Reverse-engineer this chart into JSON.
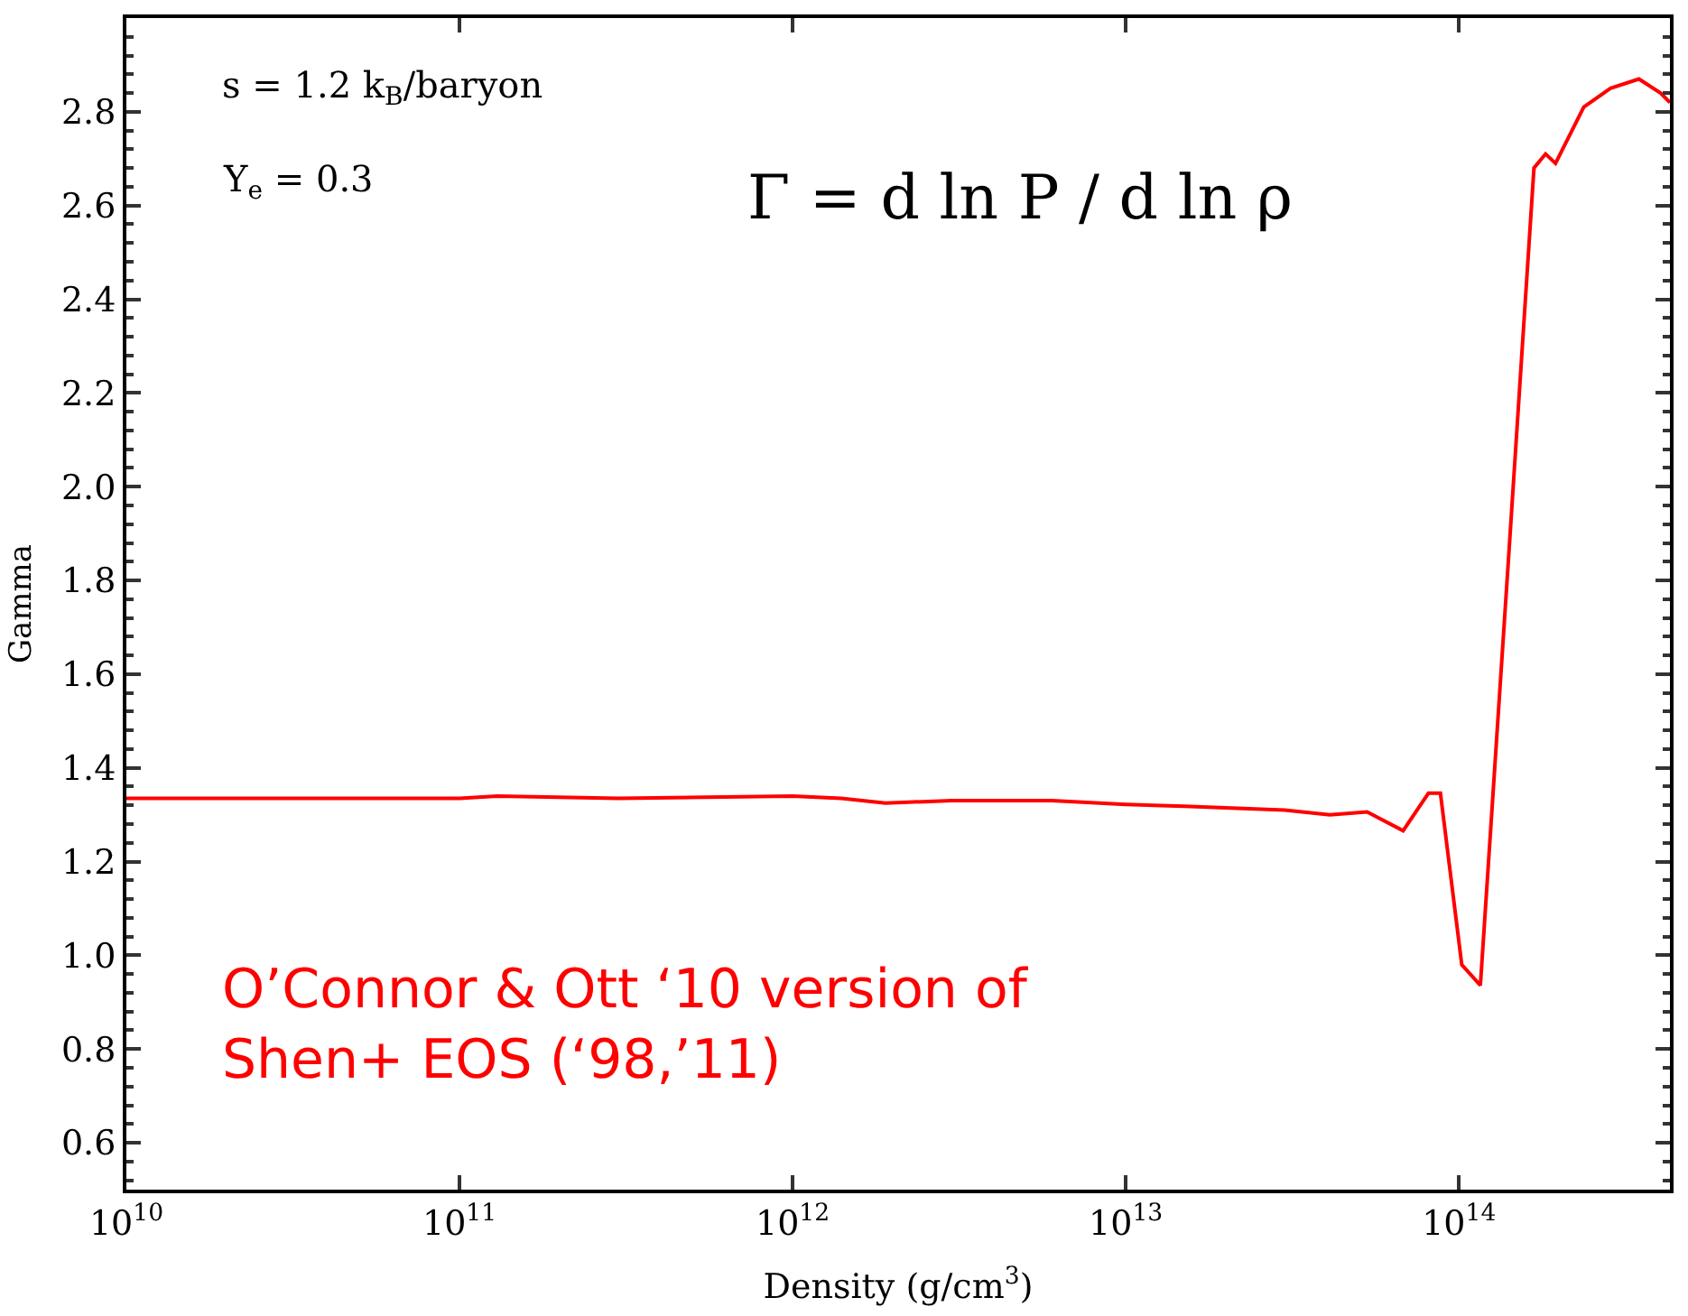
{
  "chart_data": {
    "type": "line",
    "xlabel": "Density (g/cm$^{3}$)",
    "ylabel": "Gamma",
    "log": "x",
    "xlim": [
      10000000000.0,
      430000000000000.0
    ],
    "xticks": [
      {
        "value": 10000000000.0,
        "label": "10$^{10}$"
      },
      {
        "value": 100000000000.0,
        "label": "10$^{11}$"
      },
      {
        "value": 1000000000000.0,
        "label": "10$^{12}$"
      },
      {
        "value": 10000000000000.0,
        "label": "10$^{13}$"
      },
      {
        "value": 100000000000000.0,
        "label": "10$^{14}$"
      }
    ],
    "ylim": [
      0.5,
      3.0
    ],
    "yticks": [
      {
        "value": 0.6,
        "label": "0.6"
      },
      {
        "value": 0.8,
        "label": "0.8"
      },
      {
        "value": 1.0,
        "label": "1.0"
      },
      {
        "value": 1.2,
        "label": "1.2"
      },
      {
        "value": 1.4,
        "label": "1.4"
      },
      {
        "value": 1.6,
        "label": "1.6"
      },
      {
        "value": 1.8,
        "label": "1.8"
      },
      {
        "value": 2.0,
        "label": "2.0"
      },
      {
        "value": 2.2,
        "label": "2.2"
      },
      {
        "value": 2.4,
        "label": "2.4"
      },
      {
        "value": 2.6,
        "label": "2.6"
      },
      {
        "value": 2.8,
        "label": "2.8"
      }
    ],
    "marker": "none",
    "line_style": "solid",
    "series": [
      {
        "color": "#ff0000",
        "x": [
          10000000000.0,
          30000000000.0,
          100000000000.0,
          130000000000.0,
          300000000000.0,
          1000000000000.0,
          1400000000000.0,
          1900000000000.0,
          3000000000000.0,
          6000000000000.0,
          10000000000000.0,
          15000000000000.0,
          30000000000000.0,
          41000000000000.0,
          53000000000000.0,
          68000000000000.0,
          81000000000000.0,
          88000000000000.0,
          102000000000000.0,
          116000000000000.0,
          141000000000000.0,
          168000000000000.0,
          182000000000000.0,
          195000000000000.0,
          237000000000000.0,
          285000000000000.0,
          347000000000000.0,
          403000000000000.0,
          430000000000000.0
        ],
        "values": [
          1.335,
          1.335,
          1.335,
          1.34,
          1.335,
          1.34,
          1.335,
          1.325,
          1.33,
          1.33,
          1.322,
          1.318,
          1.31,
          1.3,
          1.306,
          1.266,
          1.346,
          1.346,
          0.98,
          0.936,
          1.85,
          2.68,
          2.71,
          2.69,
          2.81,
          2.85,
          2.87,
          2.84,
          2.82
        ]
      }
    ],
    "annotations": [
      "s = 1.2 k$_{B}$/baryon",
      "Y$_{e}$ = 0.3",
      "Γ = d ln P / d ln ρ",
      "O’Connor & Ott ‘10 version of\nShen+ EOS (‘98,’11)"
    ]
  }
}
